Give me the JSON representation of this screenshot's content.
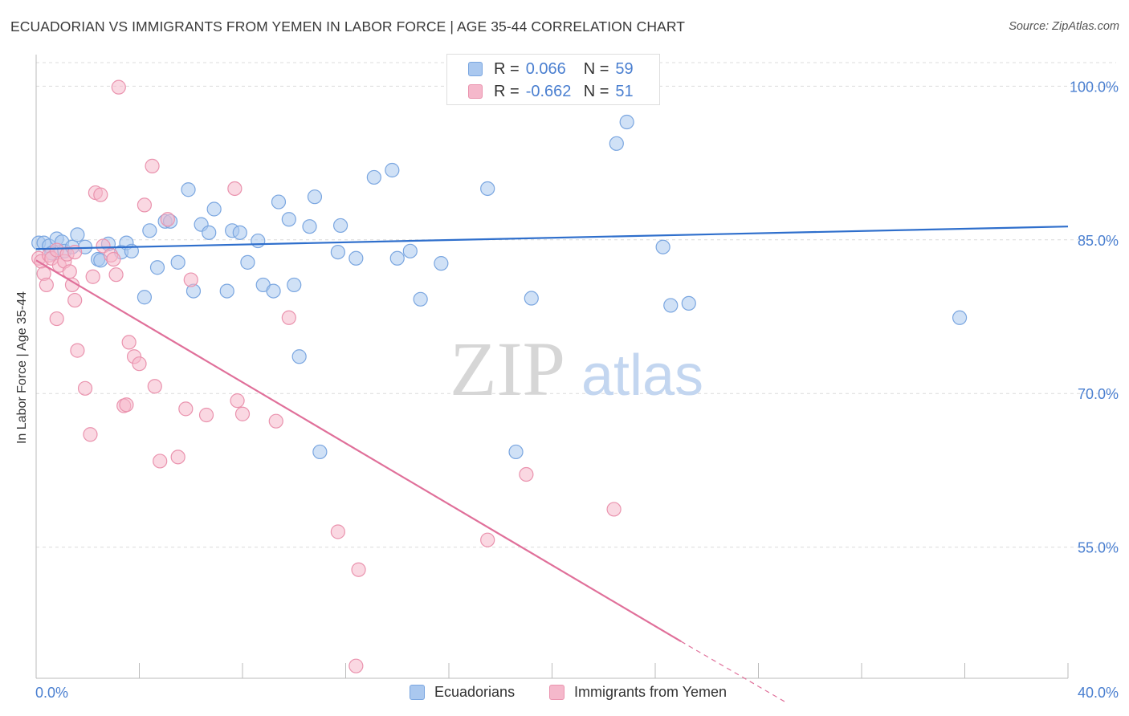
{
  "title": "ECUADORIAN VS IMMIGRANTS FROM YEMEN IN LABOR FORCE | AGE 35-44 CORRELATION CHART",
  "source": "Source: ZipAtlas.com",
  "watermark": {
    "zip": "ZIP",
    "atlas": "atlas"
  },
  "legend_top": {
    "rows": [
      {
        "r_label": "R =",
        "r_value": "0.066",
        "n_label": "N =",
        "n_value": "59"
      },
      {
        "r_label": "R =",
        "r_value": "-0.662",
        "n_label": "N =",
        "n_value": "51"
      }
    ]
  },
  "legend_bottom": {
    "items": [
      {
        "label": "Ecuadorians"
      },
      {
        "label": "Immigrants from Yemen"
      }
    ]
  },
  "colors": {
    "blue_fill": "#aac8ef",
    "blue_stroke": "#7aa6e0",
    "blue_line": "#2f6fcc",
    "pink_fill": "#f5b8cb",
    "pink_stroke": "#ea93ae",
    "pink_line": "#e0709a",
    "tick_label": "#4a7fd0",
    "grid": "#dcdcdc"
  },
  "chart_data": {
    "type": "scatter",
    "title": "ECUADORIAN VS IMMIGRANTS FROM YEMEN IN LABOR FORCE | AGE 35-44 CORRELATION CHART",
    "xlabel": "",
    "ylabel": "In Labor Force | Age 35-44",
    "xlim": [
      0,
      40
    ],
    "ylim": [
      42.2,
      102.3
    ],
    "x_tick_labels": [
      "0.0%",
      "40.0%"
    ],
    "y_ticks": [
      55,
      70,
      85,
      100
    ],
    "y_tick_labels": [
      "55.0%",
      "70.0%",
      "85.0%",
      "100.0%"
    ],
    "grid": true,
    "series": [
      {
        "name": "Ecuadorians",
        "color": "#aac8ef",
        "trend": {
          "x": [
            0,
            40
          ],
          "y": [
            84.1,
            86.3
          ]
        },
        "points": [
          [
            0.1,
            84.7
          ],
          [
            0.3,
            84.7
          ],
          [
            0.5,
            84.4
          ],
          [
            0.6,
            83.7
          ],
          [
            0.8,
            85.1
          ],
          [
            1.0,
            84.8
          ],
          [
            1.1,
            83.9
          ],
          [
            1.4,
            84.3
          ],
          [
            1.6,
            85.5
          ],
          [
            1.9,
            84.3
          ],
          [
            2.4,
            83.1
          ],
          [
            2.5,
            83.0
          ],
          [
            2.8,
            84.6
          ],
          [
            3.3,
            83.8
          ],
          [
            3.5,
            84.7
          ],
          [
            3.7,
            83.9
          ],
          [
            4.2,
            79.4
          ],
          [
            4.4,
            85.9
          ],
          [
            4.7,
            82.3
          ],
          [
            5.0,
            86.8
          ],
          [
            5.2,
            86.8
          ],
          [
            5.5,
            82.8
          ],
          [
            5.9,
            89.9
          ],
          [
            6.1,
            80.0
          ],
          [
            6.4,
            86.5
          ],
          [
            6.7,
            85.7
          ],
          [
            6.9,
            88.0
          ],
          [
            7.4,
            80.0
          ],
          [
            7.6,
            85.9
          ],
          [
            7.9,
            85.7
          ],
          [
            8.2,
            82.8
          ],
          [
            8.6,
            84.9
          ],
          [
            8.8,
            80.6
          ],
          [
            9.2,
            80.0
          ],
          [
            9.4,
            88.7
          ],
          [
            9.8,
            87.0
          ],
          [
            10.0,
            80.6
          ],
          [
            10.2,
            73.6
          ],
          [
            10.6,
            86.3
          ],
          [
            10.8,
            89.2
          ],
          [
            11.0,
            64.3
          ],
          [
            11.7,
            83.8
          ],
          [
            11.8,
            86.4
          ],
          [
            12.4,
            83.2
          ],
          [
            13.1,
            91.1
          ],
          [
            13.8,
            91.8
          ],
          [
            14.0,
            83.2
          ],
          [
            14.5,
            83.9
          ],
          [
            14.9,
            79.2
          ],
          [
            15.7,
            82.7
          ],
          [
            17.5,
            90.0
          ],
          [
            18.6,
            64.3
          ],
          [
            19.2,
            79.3
          ],
          [
            21.8,
            100.0
          ],
          [
            22.5,
            94.4
          ],
          [
            22.9,
            96.5
          ],
          [
            24.3,
            84.3
          ],
          [
            24.6,
            78.6
          ],
          [
            25.3,
            78.8
          ],
          [
            35.8,
            77.4
          ]
        ]
      },
      {
        "name": "Immigrants from Yemen",
        "color": "#f5b8cb",
        "trend": {
          "x": [
            0,
            25.0
          ],
          "y": [
            83.0,
            45.8
          ]
        },
        "trend_dashed": {
          "x": [
            25.0,
            29.1
          ],
          "y": [
            45.8,
            39.8
          ]
        },
        "points": [
          [
            0.1,
            83.2
          ],
          [
            0.2,
            82.9
          ],
          [
            0.3,
            81.7
          ],
          [
            0.4,
            80.6
          ],
          [
            0.5,
            83.5
          ],
          [
            0.6,
            83.2
          ],
          [
            0.8,
            84.0
          ],
          [
            0.8,
            77.3
          ],
          [
            0.9,
            82.5
          ],
          [
            1.1,
            82.9
          ],
          [
            1.2,
            83.6
          ],
          [
            1.3,
            81.9
          ],
          [
            1.4,
            80.6
          ],
          [
            1.5,
            83.8
          ],
          [
            1.5,
            79.1
          ],
          [
            1.6,
            74.2
          ],
          [
            1.9,
            70.5
          ],
          [
            2.1,
            66.0
          ],
          [
            2.2,
            81.4
          ],
          [
            2.3,
            89.6
          ],
          [
            2.5,
            89.4
          ],
          [
            2.6,
            84.4
          ],
          [
            2.9,
            83.5
          ],
          [
            3.0,
            83.1
          ],
          [
            3.1,
            81.6
          ],
          [
            3.2,
            99.9
          ],
          [
            3.4,
            68.8
          ],
          [
            3.5,
            68.9
          ],
          [
            3.6,
            75.0
          ],
          [
            3.8,
            73.6
          ],
          [
            4.0,
            72.9
          ],
          [
            4.2,
            88.4
          ],
          [
            4.5,
            92.2
          ],
          [
            4.6,
            70.7
          ],
          [
            4.8,
            63.4
          ],
          [
            5.1,
            87.0
          ],
          [
            5.5,
            63.8
          ],
          [
            5.8,
            68.5
          ],
          [
            6.0,
            81.1
          ],
          [
            6.6,
            67.9
          ],
          [
            7.7,
            90.0
          ],
          [
            7.8,
            69.3
          ],
          [
            8.0,
            68.0
          ],
          [
            9.3,
            67.3
          ],
          [
            9.8,
            77.4
          ],
          [
            11.7,
            56.5
          ],
          [
            12.5,
            52.8
          ],
          [
            12.4,
            43.4
          ],
          [
            17.5,
            55.7
          ],
          [
            19.0,
            62.1
          ],
          [
            22.4,
            58.7
          ]
        ]
      }
    ]
  }
}
